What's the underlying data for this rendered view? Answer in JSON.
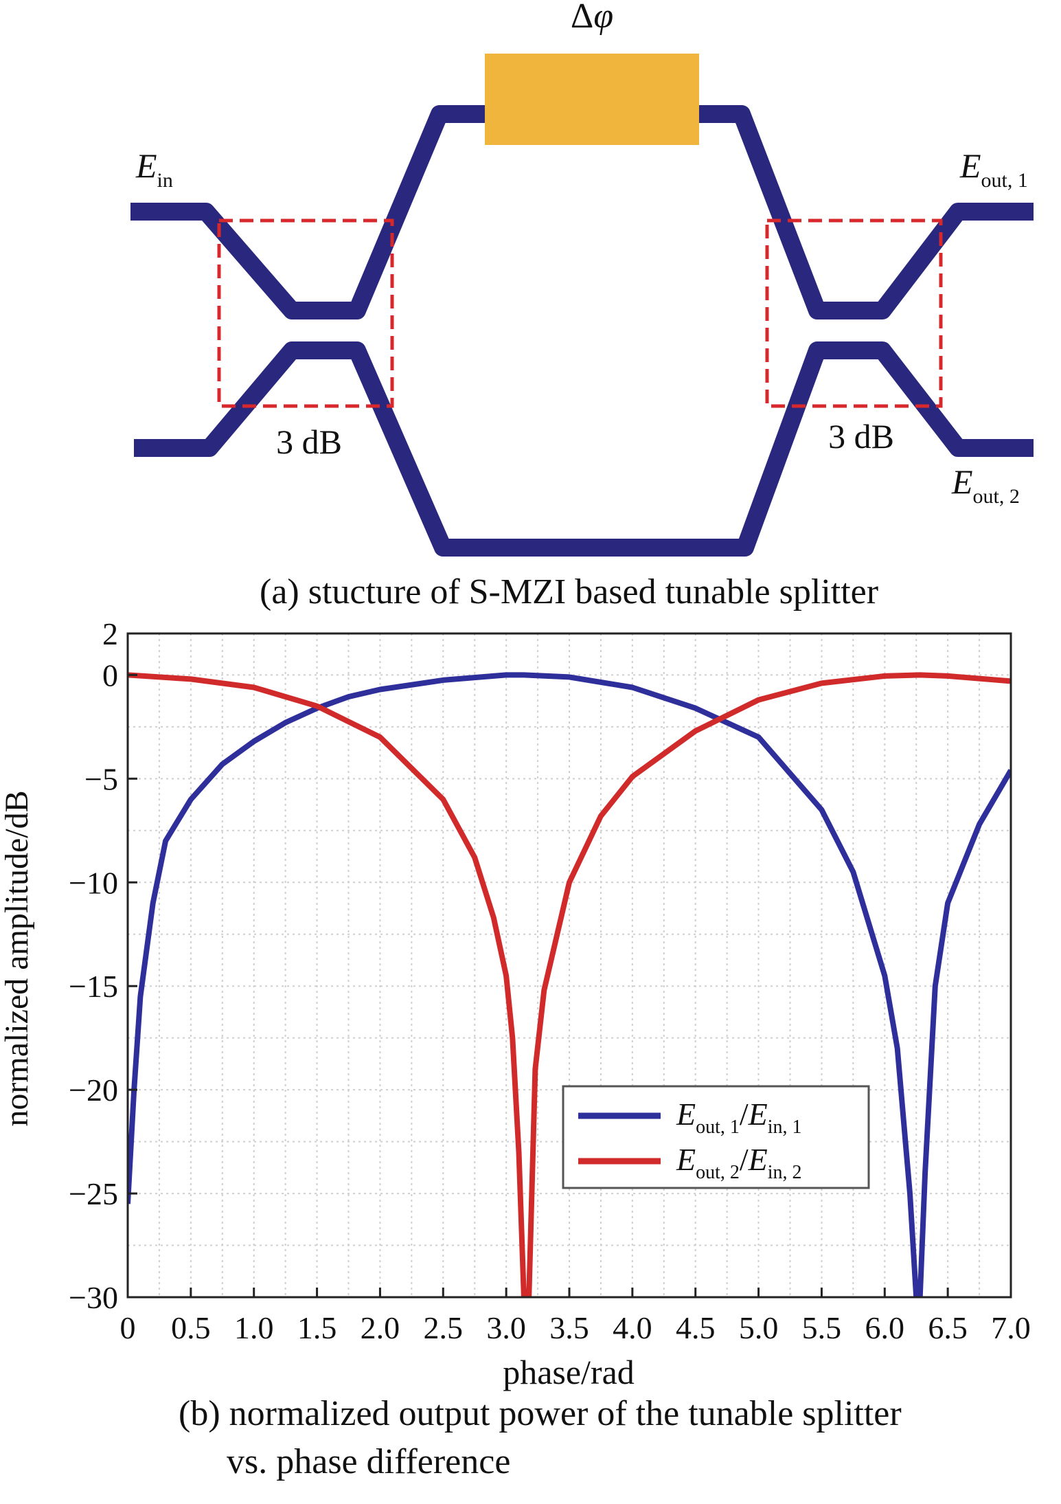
{
  "diagram": {
    "phase_label_symbol": "Δ",
    "phase_label_var": "φ",
    "input_label": {
      "main": "E",
      "sub": "in"
    },
    "output1_label": {
      "main": "E",
      "sub": "out, 1"
    },
    "output2_label": {
      "main": "E",
      "sub": "out, 2"
    },
    "coupler_left_label": "3 dB",
    "coupler_right_label": "3 dB",
    "caption": "(a) stucture of S-MZI based tunable splitter",
    "colors": {
      "waveguide": "#29277e",
      "phase_shifter": "#f0b53c",
      "coupler_box": "#d8282b"
    }
  },
  "chart_data": {
    "type": "line",
    "xlabel": "phase/rad",
    "ylabel": "normalized amplitude/dB",
    "xlim": [
      0,
      7.0
    ],
    "ylim": [
      -30,
      2
    ],
    "x_ticks": [
      "0",
      "0.5",
      "1.0",
      "1.5",
      "2.0",
      "2.5",
      "3.0",
      "3.5",
      "4.0",
      "4.5",
      "5.0",
      "5.5",
      "6.0",
      "6.5",
      "7.0"
    ],
    "y_ticks": [
      "2",
      "0",
      "−5",
      "−10",
      "−15",
      "−20",
      "−25",
      "−30"
    ],
    "grid": true,
    "legend_position": "lower-right",
    "series": [
      {
        "legend": {
          "num_main": "E",
          "num_sub": "out, 1",
          "den_main": "E",
          "den_sub": "in, 1"
        },
        "color": "#2f2f9c",
        "x": [
          0,
          0.05,
          0.1,
          0.2,
          0.3,
          0.5,
          0.75,
          1.0,
          1.25,
          1.5,
          1.75,
          2.0,
          2.5,
          3.0,
          3.14,
          3.5,
          4.0,
          4.5,
          5.0,
          5.5,
          5.75,
          6.0,
          6.1,
          6.2,
          6.25,
          6.28,
          6.32,
          6.4,
          6.5,
          6.75,
          7.0
        ],
        "y": [
          -25.5,
          -20,
          -15.5,
          -11,
          -8,
          -6,
          -4.3,
          -3.2,
          -2.3,
          -1.6,
          -1.05,
          -0.7,
          -0.25,
          0,
          0,
          -0.1,
          -0.6,
          -1.6,
          -3.0,
          -6.5,
          -9.5,
          -14.5,
          -18,
          -25,
          -30,
          -30,
          -24,
          -15,
          -11,
          -7.2,
          -4.6
        ]
      },
      {
        "legend": {
          "num_main": "E",
          "num_sub": "out, 2",
          "den_main": "E",
          "den_sub": "in, 2"
        },
        "color": "#d02a2a",
        "x": [
          0,
          0.5,
          1.0,
          1.5,
          2.0,
          2.5,
          2.75,
          2.9,
          3.0,
          3.05,
          3.1,
          3.14,
          3.18,
          3.23,
          3.3,
          3.5,
          3.75,
          4.0,
          4.5,
          5.0,
          5.5,
          6.0,
          6.28,
          6.5,
          7.0
        ],
        "y": [
          0,
          -0.2,
          -0.6,
          -1.5,
          -3.0,
          -6.0,
          -8.8,
          -11.7,
          -14.5,
          -17.5,
          -23,
          -30,
          -30,
          -19,
          -15.2,
          -10,
          -6.8,
          -4.9,
          -2.7,
          -1.2,
          -0.4,
          -0.05,
          0,
          -0.05,
          -0.3
        ]
      }
    ],
    "caption_line1": "(b) normalized output power of the tunable splitter",
    "caption_line2": "vs. phase difference"
  }
}
